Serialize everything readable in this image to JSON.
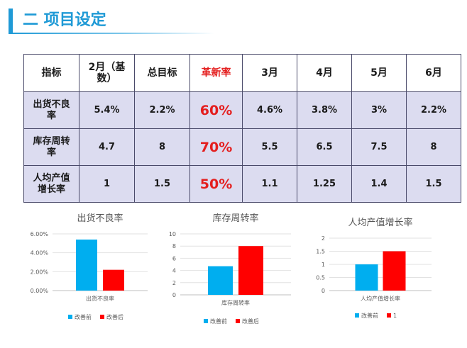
{
  "header": {
    "title": "二 项目设定"
  },
  "table": {
    "columns": [
      "指标",
      "2月（基数）",
      "总目标",
      "革新率",
      "3月",
      "4月",
      "5月",
      "6月"
    ],
    "rows": [
      {
        "name": "出货不良率",
        "cells": [
          "5.4%",
          "2.2%",
          "60%",
          "4.6%",
          "3.8%",
          "3%",
          "2.2%"
        ]
      },
      {
        "name": "库存周转率",
        "cells": [
          "4.7",
          "8",
          "70%",
          "5.5",
          "6.5",
          "7.5",
          "8"
        ]
      },
      {
        "name": "人均产值增长率",
        "cells": [
          "1",
          "1.5",
          "50%",
          "1.1",
          "1.25",
          "1.4",
          "1.5"
        ]
      }
    ]
  },
  "colors": {
    "before": "#00aeef",
    "after": "#ff0000",
    "accent": "#1f9ad6",
    "highlight_text": "#e41e1e"
  },
  "chart_data": [
    {
      "type": "bar",
      "title": "出货不良率",
      "categories": [
        "出货不良率"
      ],
      "xlabel": "出货不良率",
      "ylabel": "",
      "yticks": [
        "6.00%",
        "4.00%",
        "2.00%",
        "0.00%"
      ],
      "ylim": [
        0,
        0.06
      ],
      "series": [
        {
          "name": "改善前",
          "values": [
            0.054
          ]
        },
        {
          "name": "改善后",
          "values": [
            0.022
          ]
        }
      ],
      "legend_position": "bottom",
      "grid": true
    },
    {
      "type": "bar",
      "title": "库存周转率",
      "categories": [
        "库存周转率"
      ],
      "xlabel": "库存周转率",
      "ylabel": "",
      "yticks": [
        "10",
        "8",
        "6",
        "4",
        "2",
        "0"
      ],
      "ylim": [
        0,
        10
      ],
      "series": [
        {
          "name": "改善前",
          "values": [
            4.7
          ]
        },
        {
          "name": "改善后",
          "values": [
            8
          ]
        }
      ],
      "legend_position": "bottom",
      "grid": true
    },
    {
      "type": "bar",
      "title": "人均产值增长率",
      "categories": [
        "人均产值增长率"
      ],
      "xlabel": "人均产值增长率",
      "ylabel": "",
      "yticks": [
        "2",
        "1.5",
        "1",
        "0.5",
        "0"
      ],
      "ylim": [
        0,
        2
      ],
      "series": [
        {
          "name": "改善前",
          "values": [
            1
          ]
        },
        {
          "name": "1",
          "values": [
            1.5
          ]
        }
      ],
      "legend_position": "bottom",
      "grid": true
    }
  ]
}
